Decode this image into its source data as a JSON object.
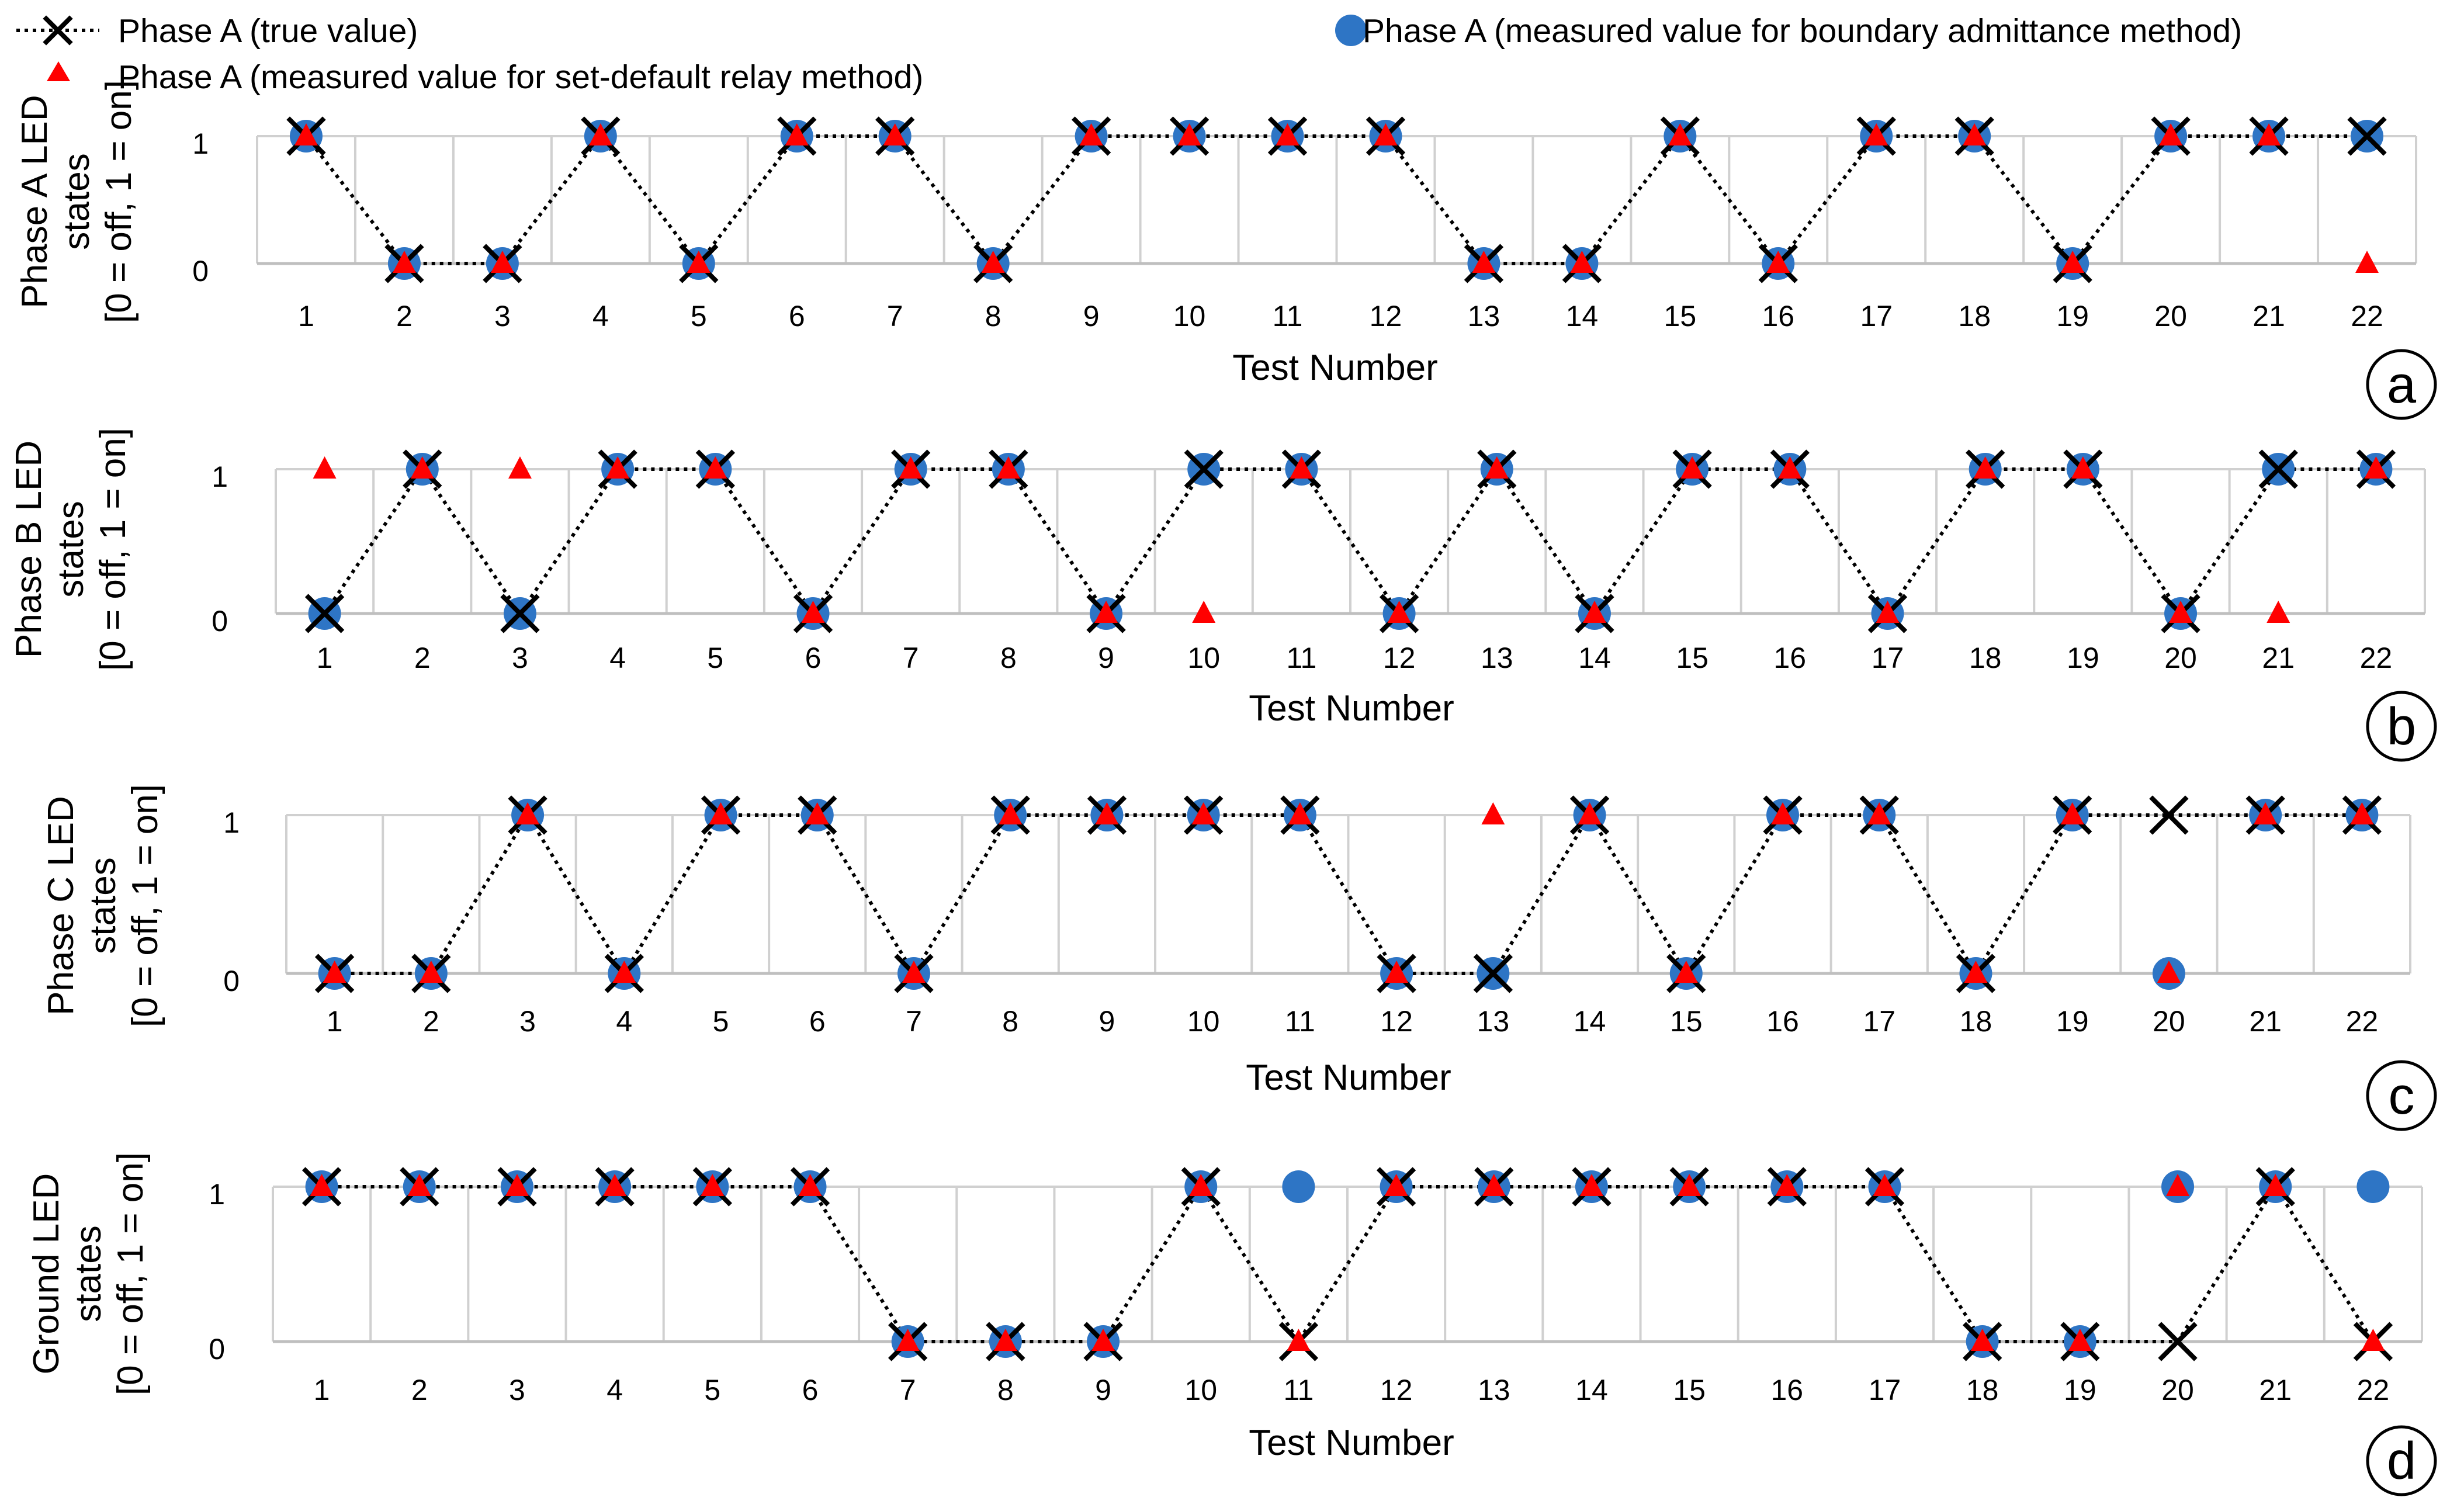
{
  "legend": {
    "true_label": "Phase A (true value)",
    "relay_label": "Phase A (measured value for set-default relay method)",
    "admittance_label": "Phase A (measured value for boundary admittance method)"
  },
  "colors": {
    "true_marker": "#000000",
    "relay_marker": "#ff0000",
    "admittance_marker": "#2e75c5",
    "grid": "#d0d0d0"
  },
  "chart_data": [
    {
      "type": "scatter",
      "panel": "a",
      "ylabel_line1": "Phase A LED",
      "ylabel_line2": "states",
      "ylabel_line3": "[0 = off, 1 = on]",
      "xlabel": "Test Number",
      "x": [
        1,
        2,
        3,
        4,
        5,
        6,
        7,
        8,
        9,
        10,
        11,
        12,
        13,
        14,
        15,
        16,
        17,
        18,
        19,
        20,
        21,
        22
      ],
      "ylim": [
        0,
        1
      ],
      "yticks": [
        0,
        1
      ],
      "series": [
        {
          "name": "Phase A (true value)",
          "values": [
            1,
            0,
            0,
            1,
            0,
            1,
            1,
            0,
            1,
            1,
            1,
            1,
            0,
            0,
            1,
            0,
            1,
            1,
            0,
            1,
            1,
            1
          ]
        },
        {
          "name": "Phase A (measured value for boundary admittance method)",
          "values": [
            1,
            0,
            0,
            1,
            0,
            1,
            1,
            0,
            1,
            1,
            1,
            1,
            0,
            0,
            1,
            0,
            1,
            1,
            0,
            1,
            1,
            1
          ]
        },
        {
          "name": "Phase A (measured value for set-default relay method)",
          "values": [
            1,
            0,
            0,
            1,
            0,
            1,
            1,
            0,
            1,
            1,
            1,
            1,
            0,
            0,
            1,
            0,
            1,
            1,
            0,
            1,
            1,
            0
          ]
        }
      ]
    },
    {
      "type": "scatter",
      "panel": "b",
      "ylabel_line1": "Phase B LED",
      "ylabel_line2": "states",
      "ylabel_line3": "[0 = off, 1 = on]",
      "xlabel": "Test Number",
      "x": [
        1,
        2,
        3,
        4,
        5,
        6,
        7,
        8,
        9,
        10,
        11,
        12,
        13,
        14,
        15,
        16,
        17,
        18,
        19,
        20,
        21,
        22
      ],
      "ylim": [
        0,
        1
      ],
      "yticks": [
        0,
        1
      ],
      "series": [
        {
          "name": "Phase A (true value)",
          "values": [
            0,
            1,
            0,
            1,
            1,
            0,
            1,
            1,
            0,
            1,
            1,
            0,
            1,
            0,
            1,
            1,
            0,
            1,
            1,
            0,
            1,
            1
          ]
        },
        {
          "name": "Phase A (measured value for boundary admittance method)",
          "values": [
            0,
            1,
            0,
            1,
            1,
            0,
            1,
            1,
            0,
            1,
            1,
            0,
            1,
            0,
            1,
            1,
            0,
            1,
            1,
            0,
            1,
            1
          ]
        },
        {
          "name": "Phase A (measured value for set-default relay method)",
          "values": [
            1,
            1,
            1,
            1,
            1,
            0,
            1,
            1,
            0,
            0,
            1,
            0,
            1,
            0,
            1,
            1,
            0,
            1,
            1,
            0,
            0,
            1
          ]
        }
      ]
    },
    {
      "type": "scatter",
      "panel": "c",
      "ylabel_line1": "Phase C LED",
      "ylabel_line2": "states",
      "ylabel_line3": "[0 = off, 1 = on]",
      "xlabel": "Test Number",
      "x": [
        1,
        2,
        3,
        4,
        5,
        6,
        7,
        8,
        9,
        10,
        11,
        12,
        13,
        14,
        15,
        16,
        17,
        18,
        19,
        20,
        21,
        22
      ],
      "ylim": [
        0,
        1
      ],
      "yticks": [
        0,
        1
      ],
      "series": [
        {
          "name": "Phase A (true value)",
          "values": [
            0,
            0,
            1,
            0,
            1,
            1,
            0,
            1,
            1,
            1,
            1,
            0,
            0,
            1,
            0,
            1,
            1,
            0,
            1,
            1,
            1,
            1
          ]
        },
        {
          "name": "Phase A (measured value for boundary admittance method)",
          "values": [
            0,
            0,
            1,
            0,
            1,
            1,
            0,
            1,
            1,
            1,
            1,
            0,
            0,
            1,
            0,
            1,
            1,
            0,
            1,
            0,
            1,
            1
          ]
        },
        {
          "name": "Phase A (measured value for set-default relay method)",
          "values": [
            0,
            0,
            1,
            0,
            1,
            1,
            0,
            1,
            1,
            1,
            1,
            0,
            1,
            1,
            0,
            1,
            1,
            0,
            1,
            0,
            1,
            1
          ]
        }
      ]
    },
    {
      "type": "scatter",
      "panel": "d",
      "ylabel_line1": "Ground LED",
      "ylabel_line2": "states",
      "ylabel_line3": "[0 = off, 1 = on]",
      "xlabel": "Test Number",
      "x": [
        1,
        2,
        3,
        4,
        5,
        6,
        7,
        8,
        9,
        10,
        11,
        12,
        13,
        14,
        15,
        16,
        17,
        18,
        19,
        20,
        21,
        22
      ],
      "ylim": [
        0,
        1
      ],
      "yticks": [
        0,
        1
      ],
      "series": [
        {
          "name": "Phase A (true value)",
          "values": [
            1,
            1,
            1,
            1,
            1,
            1,
            0,
            0,
            0,
            1,
            0,
            1,
            1,
            1,
            1,
            1,
            1,
            0,
            0,
            0,
            1,
            0
          ]
        },
        {
          "name": "Phase A (measured value for boundary admittance method)",
          "values": [
            1,
            1,
            1,
            1,
            1,
            1,
            0,
            0,
            0,
            1,
            1,
            1,
            1,
            1,
            1,
            1,
            1,
            0,
            0,
            1,
            1,
            1
          ]
        },
        {
          "name": "Phase A (measured value for set-default relay method)",
          "values": [
            1,
            1,
            1,
            1,
            1,
            1,
            0,
            0,
            0,
            1,
            0,
            1,
            1,
            1,
            1,
            1,
            1,
            0,
            0,
            1,
            1,
            0
          ]
        }
      ]
    }
  ]
}
